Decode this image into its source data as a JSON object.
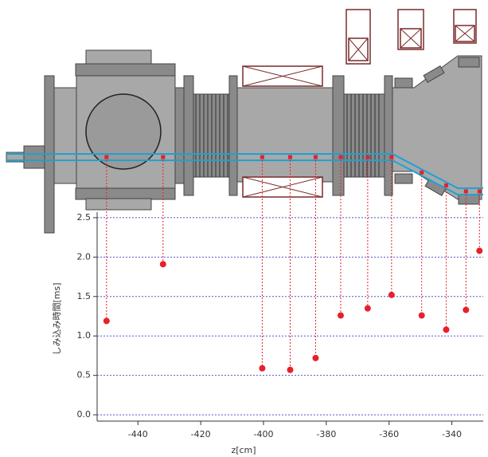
{
  "chart_data": {
    "type": "scatter",
    "x_label": "z[cm]",
    "y_label": "しみ込み時間[ms]",
    "x": [
      -450,
      -432,
      -400.4,
      -391.5,
      -383.4,
      -375.4,
      -366.8,
      -359.2,
      -349.6,
      -341.8,
      -335.5,
      -331.2
    ],
    "values": [
      1.19,
      1.91,
      0.59,
      0.57,
      0.72,
      1.26,
      1.35,
      1.52,
      1.26,
      1.08,
      1.33,
      2.08
    ],
    "color": "#e8202a",
    "xlim": [
      -453,
      -330
    ],
    "ylim": [
      -0.08,
      2.57
    ],
    "xticks": [
      -440,
      -420,
      -400,
      -380,
      -360,
      -340
    ],
    "yticks": [
      {
        "value": 0,
        "label": "0.0"
      },
      0.5,
      {
        "value": 1,
        "label": "1.0"
      },
      1.5,
      {
        "value": 2,
        "label": "2.0"
      },
      2.5
    ],
    "grid": true
  }
}
